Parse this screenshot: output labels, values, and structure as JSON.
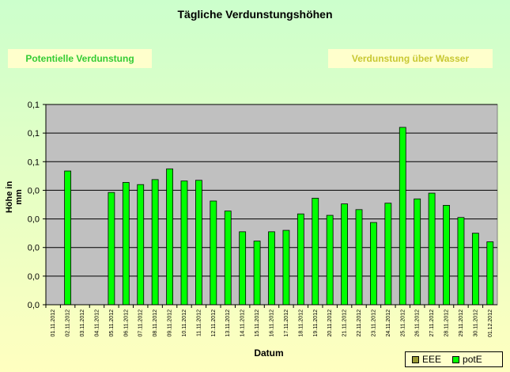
{
  "header": {
    "title": "Tägliche Verdunstungshöhen",
    "button_potential": "Potentielle Verdunstung",
    "button_water": "Verdunstung über Wasser"
  },
  "colors": {
    "bar": "#00ff00",
    "plot_background": "#c0c0c0",
    "eee_swatch": "#999933",
    "pote_swatch": "#00ff00"
  },
  "chart_data": {
    "type": "bar",
    "title": "Tägliche Verdunstungshöhen",
    "xlabel": "Datum",
    "ylabel": "Höhe in mm",
    "categories": [
      "01.11.2012",
      "02.11.2012",
      "03.11.2012",
      "04.11.2012",
      "05.11.2012",
      "06.11.2012",
      "07.11.2012",
      "08.11.2012",
      "09.11.2012",
      "10.11.2012",
      "11.11.2012",
      "12.11.2012",
      "13.11.2012",
      "14.11.2012",
      "15.11.2012",
      "16.11.2012",
      "17.11.2012",
      "18.11.2012",
      "19.11.2012",
      "20.11.2012",
      "21.11.2012",
      "22.11.2012",
      "23.11.2012",
      "24.11.2012",
      "25.11.2012",
      "26.11.2012",
      "27.11.2012",
      "28.11.2012",
      "29.11.2012",
      "30.11.2012",
      "01.12.2012"
    ],
    "y_tick_labels": [
      "0,0",
      "0,0",
      "0,0",
      "0,0",
      "0,0",
      "0,1",
      "0,1",
      "0,1"
    ],
    "ylim": [
      0,
      0.14
    ],
    "grid": true,
    "legend_position": "bottom-right",
    "series": [
      {
        "name": "EEE",
        "values": [
          0,
          0,
          0,
          0,
          0,
          0,
          0,
          0,
          0,
          0,
          0,
          0,
          0,
          0,
          0,
          0,
          0,
          0,
          0,
          0,
          0,
          0,
          0,
          0,
          0,
          0,
          0,
          0,
          0,
          0,
          0
        ]
      },
      {
        "name": "potE",
        "values": [
          0,
          0.0935,
          0,
          0,
          0.0785,
          0.0855,
          0.084,
          0.0875,
          0.095,
          0.0865,
          0.087,
          0.0725,
          0.0655,
          0.051,
          0.0445,
          0.051,
          0.052,
          0.0635,
          0.0745,
          0.0625,
          0.0705,
          0.0665,
          0.0575,
          0.071,
          0.124,
          0.074,
          0.078,
          0.0695,
          0.061,
          0.05,
          0.044
        ]
      }
    ]
  }
}
